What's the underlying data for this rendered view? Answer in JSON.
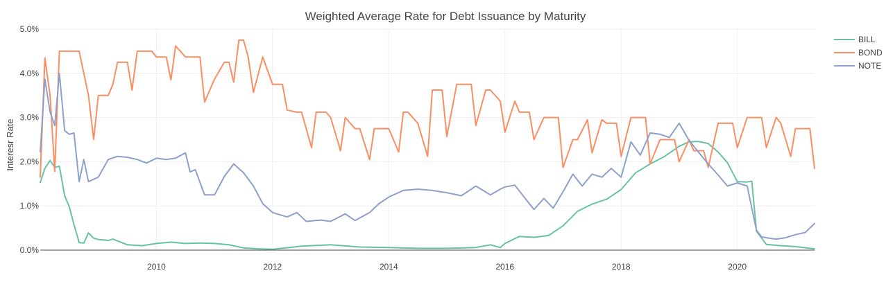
{
  "chart_data": {
    "type": "line",
    "title": "Weighted Average Rate for Debt Issuance by Maturity",
    "xlabel": "",
    "ylabel": "Interesr Rate",
    "xlim": [
      2008.0,
      2021.33
    ],
    "ylim": [
      0,
      0.05
    ],
    "x_ticks": [
      2010,
      2012,
      2014,
      2016,
      2018,
      2020
    ],
    "x_tick_labels": [
      "2010",
      "2012",
      "2014",
      "2016",
      "2018",
      "2020"
    ],
    "y_ticks": [
      0,
      0.01,
      0.02,
      0.03,
      0.04,
      0.05
    ],
    "y_tick_labels": [
      "0.0%",
      "1.0%",
      "2.0%",
      "3.0%",
      "4.0%",
      "5.0%"
    ],
    "grid": true,
    "legend_position": "top-right",
    "series": [
      {
        "name": "BILL",
        "color": "#66c2a5",
        "x": [
          2008.0,
          2008.08,
          2008.17,
          2008.25,
          2008.33,
          2008.42,
          2008.5,
          2008.58,
          2008.67,
          2008.75,
          2008.83,
          2008.92,
          2009.0,
          2009.08,
          2009.17,
          2009.25,
          2009.5,
          2009.75,
          2010.0,
          2010.25,
          2010.5,
          2010.75,
          2011.0,
          2011.25,
          2011.5,
          2011.75,
          2012.0,
          2012.5,
          2013.0,
          2013.5,
          2014.0,
          2014.5,
          2015.0,
          2015.5,
          2015.75,
          2015.92,
          2016.0,
          2016.25,
          2016.5,
          2016.75,
          2017.0,
          2017.25,
          2017.5,
          2017.75,
          2018.0,
          2018.25,
          2018.5,
          2018.75,
          2019.0,
          2019.17,
          2019.33,
          2019.5,
          2019.67,
          2019.83,
          2020.0,
          2020.17,
          2020.25,
          2020.33,
          2020.5,
          2020.75,
          2021.0,
          2021.33
        ],
        "y": [
          0.0153,
          0.0185,
          0.0203,
          0.0187,
          0.019,
          0.0123,
          0.0098,
          0.0058,
          0.0017,
          0.0016,
          0.0039,
          0.0027,
          0.0024,
          0.0023,
          0.0022,
          0.0025,
          0.0012,
          0.001,
          0.0015,
          0.0018,
          0.0015,
          0.0016,
          0.0015,
          0.0012,
          0.0005,
          0.0003,
          0.0002,
          0.0009,
          0.0012,
          0.0007,
          0.0006,
          0.0004,
          0.0004,
          0.0006,
          0.0012,
          0.0006,
          0.0015,
          0.0031,
          0.0029,
          0.0033,
          0.0055,
          0.0088,
          0.0104,
          0.0115,
          0.0137,
          0.0175,
          0.0195,
          0.0212,
          0.0235,
          0.0245,
          0.0246,
          0.0241,
          0.0222,
          0.0198,
          0.0155,
          0.0154,
          0.0156,
          0.0043,
          0.0013,
          0.001,
          0.0008,
          0.0003
        ]
      },
      {
        "name": "BOND",
        "color": "#fc8d62",
        "x": [
          2008.0,
          2008.08,
          2008.17,
          2008.25,
          2008.33,
          2008.42,
          2008.58,
          2008.67,
          2008.83,
          2008.92,
          2009.0,
          2009.17,
          2009.25,
          2009.33,
          2009.5,
          2009.58,
          2009.67,
          2009.75,
          2009.92,
          2010.0,
          2010.17,
          2010.25,
          2010.33,
          2010.5,
          2010.67,
          2010.75,
          2010.83,
          2011.0,
          2011.17,
          2011.25,
          2011.33,
          2011.42,
          2011.5,
          2011.58,
          2011.67,
          2011.83,
          2012.0,
          2012.17,
          2012.25,
          2012.42,
          2012.5,
          2012.67,
          2012.75,
          2012.92,
          2013.0,
          2013.17,
          2013.25,
          2013.42,
          2013.5,
          2013.67,
          2013.75,
          2013.83,
          2014.0,
          2014.17,
          2014.25,
          2014.33,
          2014.5,
          2014.67,
          2014.75,
          2014.92,
          2015.0,
          2015.17,
          2015.25,
          2015.42,
          2015.5,
          2015.67,
          2015.75,
          2015.92,
          2016.0,
          2016.17,
          2016.25,
          2016.42,
          2016.5,
          2016.67,
          2016.75,
          2016.92,
          2017.0,
          2017.17,
          2017.25,
          2017.42,
          2017.5,
          2017.67,
          2017.75,
          2017.92,
          2018.0,
          2018.17,
          2018.25,
          2018.42,
          2018.5,
          2018.67,
          2018.75,
          2018.92,
          2019.0,
          2019.17,
          2019.25,
          2019.42,
          2019.5,
          2019.67,
          2019.75,
          2019.92,
          2020.0,
          2020.17,
          2020.25,
          2020.42,
          2020.5,
          2020.67,
          2020.75,
          2020.92,
          2021.0,
          2021.17,
          2021.25,
          2021.33
        ],
        "y": [
          0.0165,
          0.0435,
          0.035,
          0.0178,
          0.045,
          0.045,
          0.045,
          0.045,
          0.035,
          0.025,
          0.035,
          0.035,
          0.0375,
          0.0425,
          0.0425,
          0.0362,
          0.045,
          0.045,
          0.045,
          0.0437,
          0.0437,
          0.0385,
          0.0462,
          0.0437,
          0.0437,
          0.0437,
          0.0335,
          0.0387,
          0.0425,
          0.0425,
          0.038,
          0.0475,
          0.0475,
          0.0437,
          0.0357,
          0.0437,
          0.0375,
          0.0375,
          0.0317,
          0.0312,
          0.0312,
          0.0232,
          0.0312,
          0.0312,
          0.03,
          0.0225,
          0.03,
          0.0275,
          0.0275,
          0.0205,
          0.0275,
          0.0275,
          0.0275,
          0.0222,
          0.0312,
          0.0312,
          0.0287,
          0.0212,
          0.0362,
          0.0362,
          0.0257,
          0.0375,
          0.0375,
          0.0375,
          0.0282,
          0.0362,
          0.0362,
          0.0337,
          0.0267,
          0.0337,
          0.0312,
          0.0312,
          0.025,
          0.03,
          0.03,
          0.03,
          0.0187,
          0.025,
          0.025,
          0.0295,
          0.022,
          0.0295,
          0.0287,
          0.0287,
          0.0212,
          0.03,
          0.03,
          0.03,
          0.0195,
          0.025,
          0.025,
          0.025,
          0.02,
          0.025,
          0.0225,
          0.0225,
          0.0187,
          0.0287,
          0.0287,
          0.0287,
          0.0232,
          0.03,
          0.03,
          0.03,
          0.0232,
          0.03,
          0.0287,
          0.0212,
          0.0275,
          0.0275,
          0.0275,
          0.0185
        ]
      },
      {
        "name": "NOTE",
        "color": "#8da0cb",
        "x": [
          2008.0,
          2008.08,
          2008.17,
          2008.25,
          2008.33,
          2008.42,
          2008.5,
          2008.58,
          2008.67,
          2008.75,
          2008.83,
          2009.0,
          2009.17,
          2009.33,
          2009.5,
          2009.67,
          2009.83,
          2010.0,
          2010.17,
          2010.33,
          2010.5,
          2010.58,
          2010.67,
          2010.83,
          2011.0,
          2011.17,
          2011.33,
          2011.5,
          2011.67,
          2011.83,
          2012.0,
          2012.25,
          2012.42,
          2012.58,
          2012.83,
          2013.0,
          2013.25,
          2013.42,
          2013.67,
          2013.83,
          2014.0,
          2014.25,
          2014.5,
          2014.75,
          2015.0,
          2015.25,
          2015.5,
          2015.75,
          2015.92,
          2016.0,
          2016.17,
          2016.33,
          2016.5,
          2016.67,
          2016.83,
          2017.0,
          2017.17,
          2017.33,
          2017.5,
          2017.67,
          2017.83,
          2018.0,
          2018.17,
          2018.33,
          2018.5,
          2018.67,
          2018.83,
          2019.0,
          2019.17,
          2019.33,
          2019.5,
          2019.67,
          2019.83,
          2020.0,
          2020.17,
          2020.33,
          2020.42,
          2020.5,
          2020.67,
          2020.83,
          2021.0,
          2021.17,
          2021.33
        ],
        "y": [
          0.0222,
          0.0387,
          0.0312,
          0.0282,
          0.04,
          0.027,
          0.0262,
          0.0265,
          0.0155,
          0.0205,
          0.0155,
          0.0165,
          0.0205,
          0.0212,
          0.021,
          0.0205,
          0.0197,
          0.0208,
          0.0205,
          0.0208,
          0.022,
          0.0177,
          0.0182,
          0.0125,
          0.0125,
          0.0167,
          0.0195,
          0.0175,
          0.0145,
          0.0105,
          0.0085,
          0.0075,
          0.0085,
          0.0065,
          0.0068,
          0.0065,
          0.0082,
          0.0067,
          0.0085,
          0.0105,
          0.012,
          0.0135,
          0.0138,
          0.0135,
          0.013,
          0.0123,
          0.0145,
          0.0125,
          0.0138,
          0.0143,
          0.0147,
          0.012,
          0.0092,
          0.0117,
          0.0095,
          0.0132,
          0.0172,
          0.0145,
          0.0172,
          0.0165,
          0.0185,
          0.0165,
          0.0245,
          0.0215,
          0.0265,
          0.0262,
          0.0255,
          0.0287,
          0.0248,
          0.0222,
          0.0195,
          0.017,
          0.0145,
          0.0152,
          0.0145,
          0.0045,
          0.003,
          0.0028,
          0.0025,
          0.0028,
          0.0035,
          0.004,
          0.006
        ]
      }
    ]
  }
}
